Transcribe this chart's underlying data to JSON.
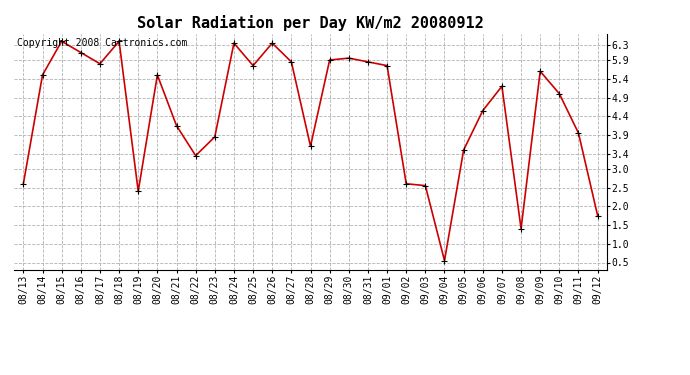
{
  "title": "Solar Radiation per Day KW/m2 20080912",
  "copyright": "Copyright 2008 Cartronics.com",
  "dates": [
    "08/13",
    "08/14",
    "08/15",
    "08/16",
    "08/17",
    "08/18",
    "08/19",
    "08/20",
    "08/21",
    "08/22",
    "08/23",
    "08/24",
    "08/25",
    "08/26",
    "08/27",
    "08/28",
    "08/29",
    "08/30",
    "08/31",
    "09/01",
    "09/02",
    "09/03",
    "09/04",
    "09/05",
    "09/06",
    "09/07",
    "09/08",
    "09/09",
    "09/10",
    "09/11",
    "09/12"
  ],
  "values": [
    2.6,
    5.5,
    6.4,
    6.1,
    5.8,
    6.4,
    2.4,
    5.5,
    4.15,
    3.35,
    3.85,
    6.35,
    5.75,
    6.35,
    5.85,
    3.6,
    5.9,
    5.95,
    5.85,
    5.75,
    2.6,
    2.55,
    0.55,
    3.5,
    4.55,
    5.2,
    1.4,
    5.6,
    5.0,
    3.95,
    1.75
  ],
  "line_color": "#cc0000",
  "marker_color": "#000000",
  "grid_color": "#aaaaaa",
  "bg_color": "#ffffff",
  "ylim": [
    0.3,
    6.6
  ],
  "yticks": [
    0.5,
    1.0,
    1.5,
    2.0,
    2.5,
    3.0,
    3.4,
    3.9,
    4.4,
    4.9,
    5.4,
    5.9,
    6.3
  ],
  "title_fontsize": 11,
  "tick_fontsize": 7,
  "copyright_fontsize": 7
}
